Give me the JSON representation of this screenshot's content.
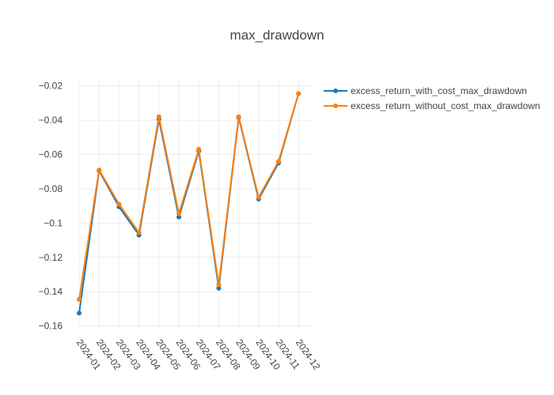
{
  "chart_data": {
    "type": "line",
    "title": "max_drawdown",
    "xlabel": "",
    "ylabel": "",
    "categories": [
      "2024-01",
      "2024-02",
      "2024-03",
      "2024-04",
      "2024-05",
      "2024-06",
      "2024-07",
      "2024-08",
      "2024-09",
      "2024-10",
      "2024-11",
      "2024-12"
    ],
    "ylim": [
      -0.162,
      -0.016
    ],
    "yticks": [
      -0.16,
      -0.14,
      -0.12,
      -0.1,
      -0.08,
      -0.06,
      -0.04,
      -0.02
    ],
    "ytick_labels": [
      "−0.16",
      "−0.14",
      "−0.12",
      "−0.1",
      "−0.08",
      "−0.06",
      "−0.04",
      "−0.02"
    ],
    "grid": true,
    "legend_position": "top-right",
    "series": [
      {
        "name": "excess_return_with_cost_max_drawdown",
        "color": "#1f77b4",
        "values": [
          -0.1525,
          -0.0695,
          -0.0905,
          -0.107,
          -0.0395,
          -0.0965,
          -0.058,
          -0.138,
          -0.0385,
          -0.086,
          -0.065,
          -0.0245
        ]
      },
      {
        "name": "excess_return_without_cost_max_drawdown",
        "color": "#ff7f0e",
        "values": [
          -0.1445,
          -0.069,
          -0.089,
          -0.1055,
          -0.038,
          -0.0945,
          -0.057,
          -0.136,
          -0.038,
          -0.085,
          -0.064,
          -0.0245
        ]
      }
    ]
  }
}
